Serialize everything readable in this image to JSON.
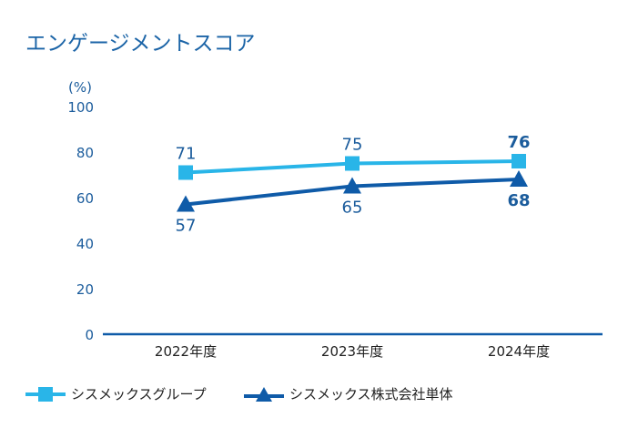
{
  "title": "エンゲージメントスコア",
  "chart_data": {
    "type": "line",
    "title": "エンゲージメントスコア",
    "ylabel": "(%)",
    "xlabel": "",
    "ylim": [
      0,
      100
    ],
    "yticks": [
      "0",
      "20",
      "40",
      "60",
      "80",
      "100"
    ],
    "categories": [
      "2022年度",
      "2023年度",
      "2024年度"
    ],
    "series": [
      {
        "name": "シスメックスグループ",
        "values": [
          71,
          75,
          76
        ],
        "color": "#29b5e8",
        "marker": "square",
        "label_pos": "above"
      },
      {
        "name": "シスメックス株式会社単体",
        "values": [
          57,
          65,
          68
        ],
        "color": "#0f5ba8",
        "marker": "triangle",
        "label_pos": "below"
      }
    ],
    "grid": false,
    "legend": "bottom-left"
  }
}
